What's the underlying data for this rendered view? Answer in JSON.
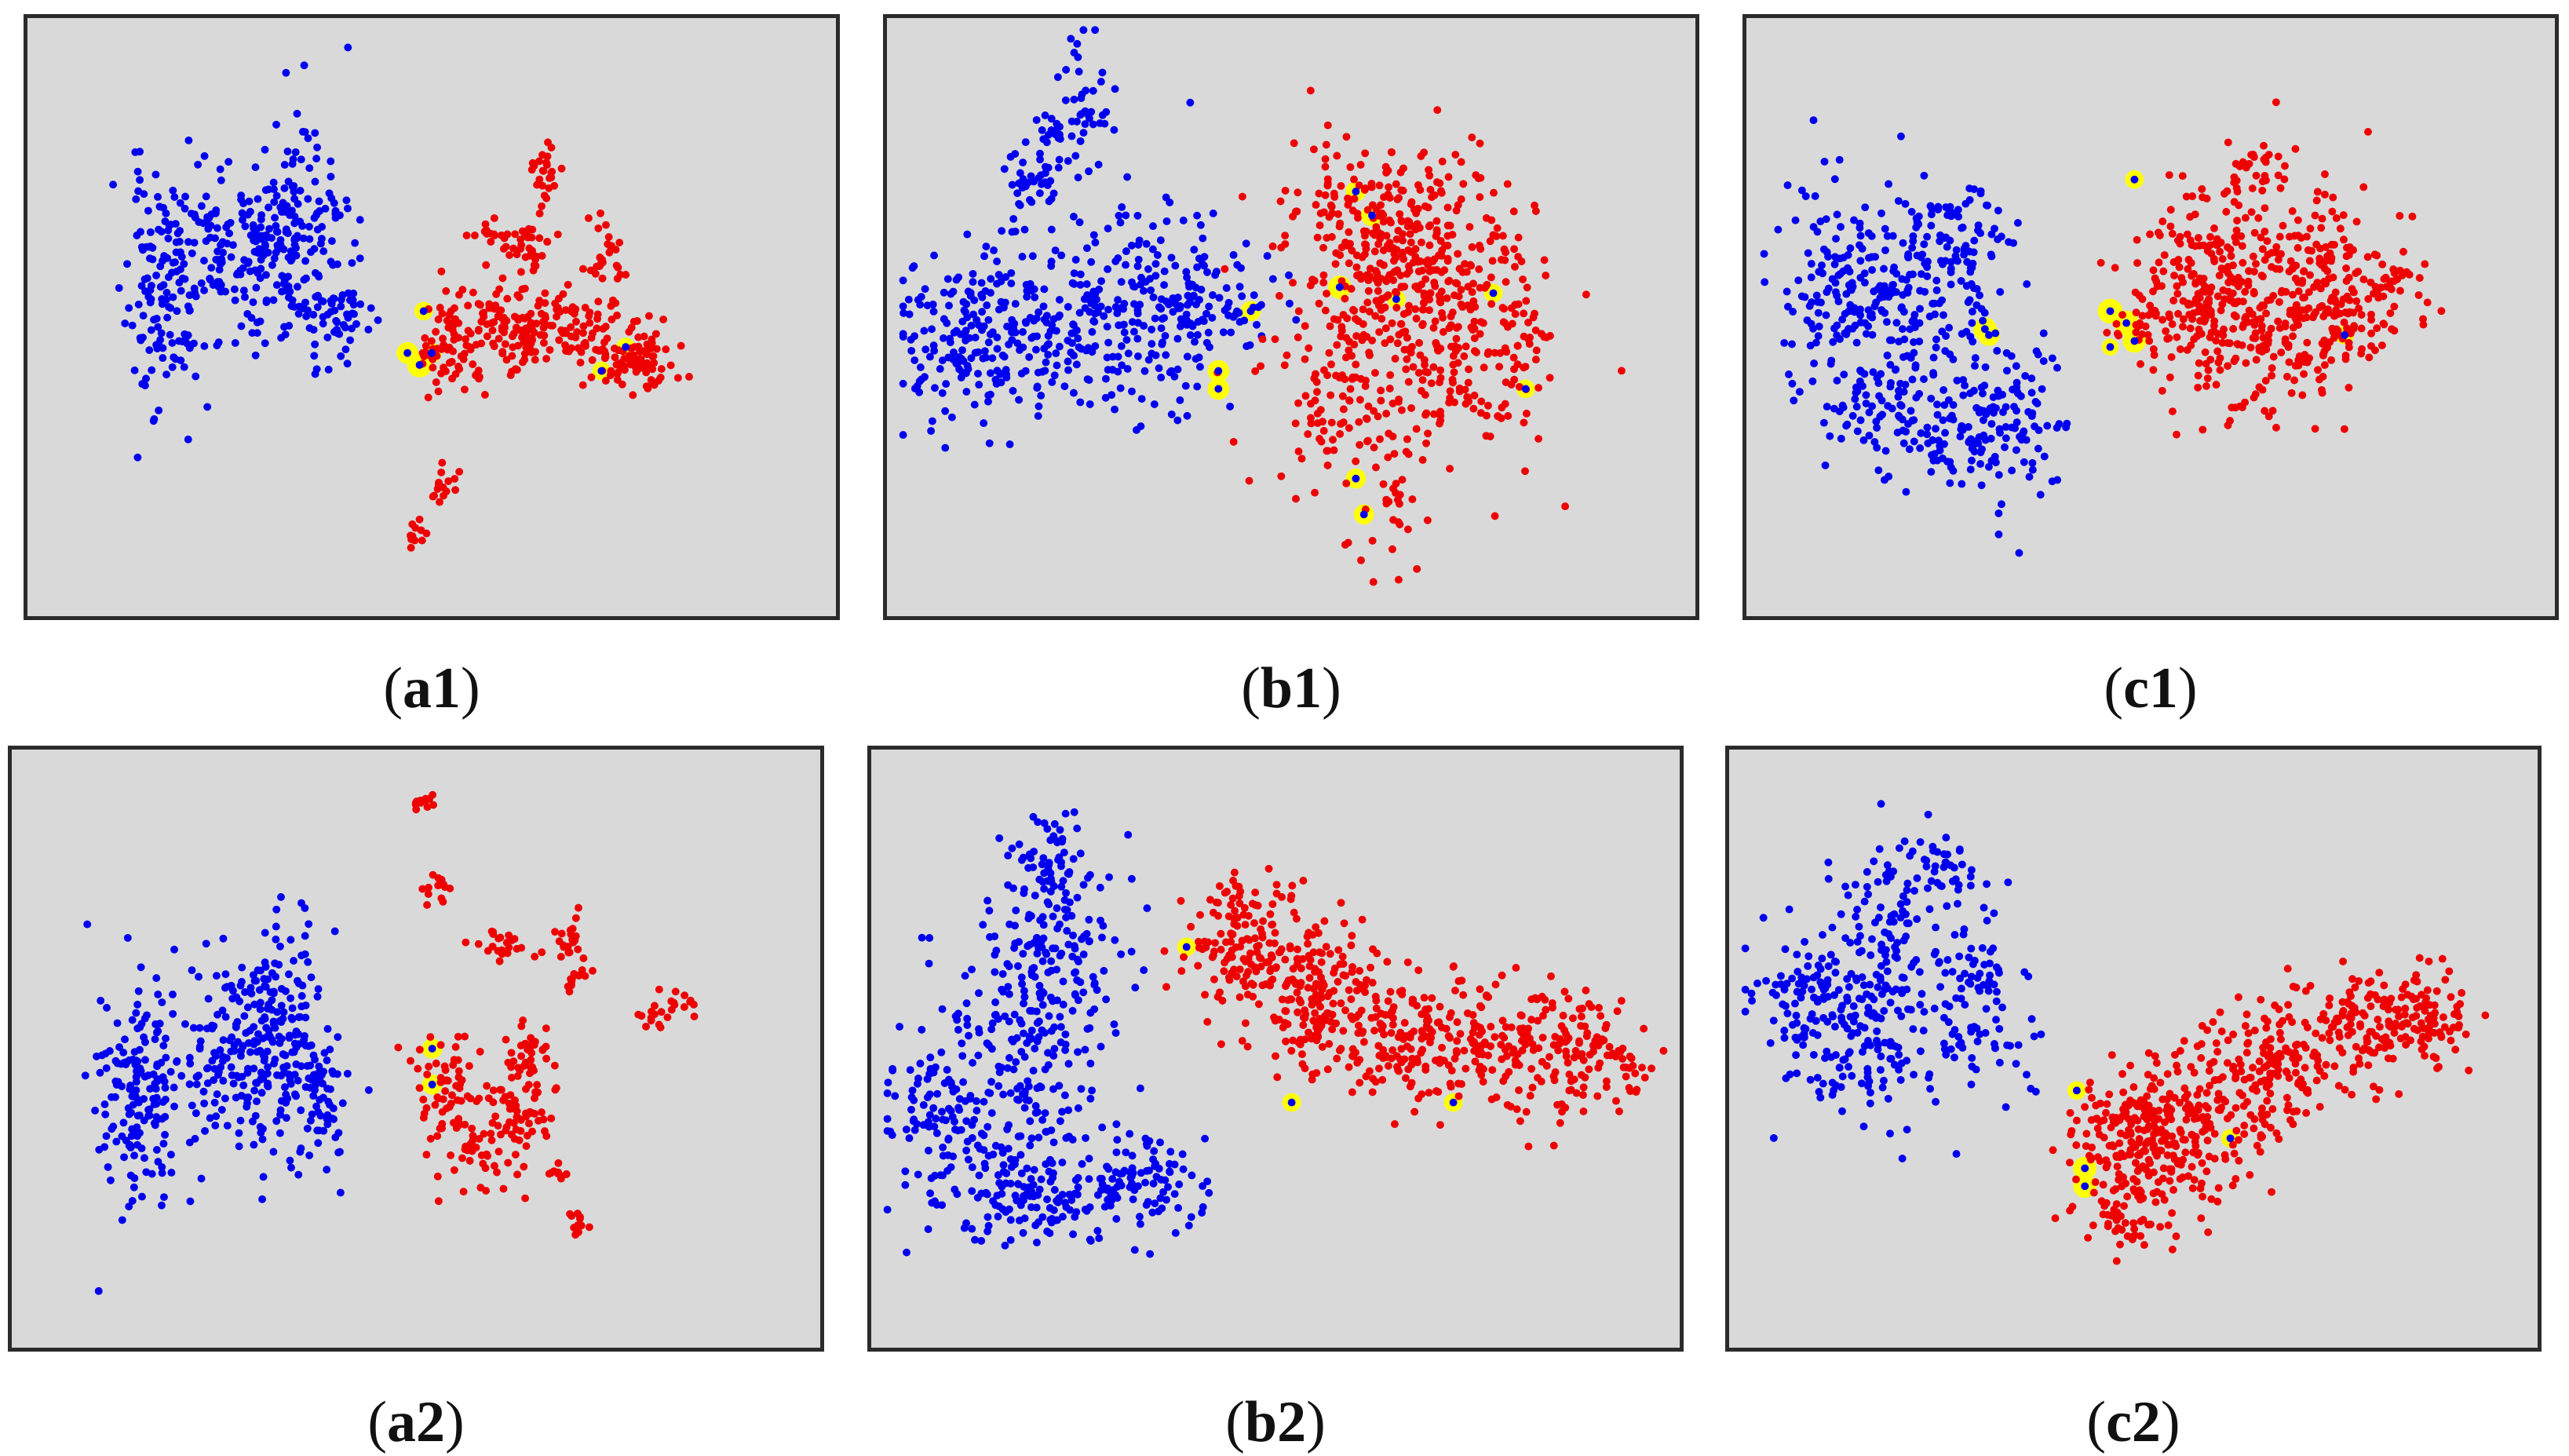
{
  "colors": {
    "class_a": "#0000ee",
    "class_b": "#ee0000",
    "highlight": "#ffff00",
    "panel_bg": "#d9d9d9",
    "panel_border": "#2b2b2b"
  },
  "chart_data": [
    {
      "id": "a1",
      "type": "scatter",
      "caption_open": "(",
      "caption_letter": "a1",
      "caption_close": ")",
      "xlim": [
        0,
        100
      ],
      "ylim": [
        0,
        100
      ],
      "seed": 11,
      "series": [
        {
          "class": "a",
          "clusters": [
            {
              "x": 17,
              "y": 55,
              "sx": 2.4,
              "sy": 10,
              "n": 150
            },
            {
              "x": 26,
              "y": 60,
              "sx": 3.4,
              "sy": 7,
              "n": 110
            },
            {
              "x": 33,
              "y": 64,
              "sx": 3.2,
              "sy": 9,
              "n": 160
            },
            {
              "x": 39,
              "y": 51,
              "sx": 2.2,
              "sy": 4,
              "n": 50
            }
          ]
        },
        {
          "class": "b",
          "clusters": [
            {
              "x": 52,
              "y": 45,
              "sx": 2,
              "sy": 4,
              "n": 50
            },
            {
              "x": 59,
              "y": 49,
              "sx": 5,
              "sy": 4,
              "n": 110
            },
            {
              "x": 66,
              "y": 48,
              "sx": 5,
              "sy": 3,
              "n": 90
            },
            {
              "x": 75,
              "y": 43,
              "sx": 2.6,
              "sy": 2.5,
              "n": 80
            },
            {
              "x": 62,
              "y": 62,
              "sx": 1.6,
              "sy": 2.2,
              "n": 35
            },
            {
              "x": 64,
              "y": 74,
              "sx": 1.2,
              "sy": 2.2,
              "n": 25
            },
            {
              "x": 71,
              "y": 63,
              "sx": 1.2,
              "sy": 2,
              "n": 15
            },
            {
              "x": 71,
              "y": 58,
              "sx": 1.5,
              "sy": 1.5,
              "n": 12
            },
            {
              "x": 57,
              "y": 64,
              "sx": 1.2,
              "sy": 1.2,
              "n": 14
            },
            {
              "x": 51,
              "y": 22,
              "sx": 1,
              "sy": 1.5,
              "n": 15
            },
            {
              "x": 48,
              "y": 14,
              "sx": 0.8,
              "sy": 1,
              "n": 12
            }
          ]
        }
      ],
      "highlights": [
        {
          "x": 47,
          "y": 44,
          "r": 1.4
        },
        {
          "x": 48.5,
          "y": 42,
          "r": 1.6
        },
        {
          "x": 50,
          "y": 44,
          "r": 1.3
        },
        {
          "x": 49,
          "y": 51,
          "r": 1.2
        },
        {
          "x": 71,
          "y": 41,
          "r": 1.2
        },
        {
          "x": 74,
          "y": 45,
          "r": 1.2
        }
      ]
    },
    {
      "id": "b1",
      "type": "scatter",
      "caption_open": "(",
      "caption_letter": "b1",
      "caption_close": ")",
      "xlim": [
        0,
        100
      ],
      "ylim": [
        0,
        100
      ],
      "seed": 23,
      "series": [
        {
          "class": "a",
          "clusters": [
            {
              "x": 10,
              "y": 46,
              "sx": 5,
              "sy": 7,
              "n": 160
            },
            {
              "x": 22,
              "y": 48,
              "sx": 6,
              "sy": 8,
              "n": 180
            },
            {
              "x": 33,
              "y": 56,
              "sx": 4,
              "sy": 9,
              "n": 90
            },
            {
              "x": 40,
              "y": 52,
              "sx": 4,
              "sy": 3,
              "n": 60
            },
            {
              "x": 19,
              "y": 74,
              "sx": 2.2,
              "sy": 4,
              "n": 45
            },
            {
              "x": 24,
              "y": 85,
              "sx": 2,
              "sy": 6,
              "n": 50
            },
            {
              "x": 36,
              "y": 42,
              "sx": 3,
              "sy": 3,
              "n": 20
            }
          ]
        },
        {
          "class": "b",
          "clusters": [
            {
              "x": 60,
              "y": 64,
              "sx": 6,
              "sy": 8,
              "n": 220
            },
            {
              "x": 67,
              "y": 56,
              "sx": 7,
              "sy": 9,
              "n": 190
            },
            {
              "x": 58,
              "y": 38,
              "sx": 6,
              "sy": 8,
              "n": 140
            },
            {
              "x": 72,
              "y": 38,
              "sx": 5,
              "sy": 7,
              "n": 80
            },
            {
              "x": 77,
              "y": 52,
              "sx": 3,
              "sy": 8,
              "n": 50
            },
            {
              "x": 62,
              "y": 16,
              "sx": 2.5,
              "sy": 5,
              "n": 25
            }
          ]
        }
      ],
      "highlights": [
        {
          "x": 45,
          "y": 51,
          "r": 1.3
        },
        {
          "x": 41,
          "y": 41,
          "r": 1.4
        },
        {
          "x": 41,
          "y": 38,
          "r": 1.4
        },
        {
          "x": 56,
          "y": 55,
          "r": 1.5
        },
        {
          "x": 58,
          "y": 71,
          "r": 1.3
        },
        {
          "x": 60,
          "y": 67,
          "r": 1.4
        },
        {
          "x": 63,
          "y": 53,
          "r": 1.2
        },
        {
          "x": 75,
          "y": 54,
          "r": 1.2
        },
        {
          "x": 79,
          "y": 38,
          "r": 1.2
        },
        {
          "x": 58,
          "y": 23,
          "r": 1.3
        },
        {
          "x": 59,
          "y": 17,
          "r": 1.3
        }
      ]
    },
    {
      "id": "c1",
      "type": "scatter",
      "caption_open": "(",
      "caption_letter": "c1",
      "caption_close": ")",
      "xlim": [
        0,
        100
      ],
      "ylim": [
        0,
        100
      ],
      "seed": 37,
      "series": [
        {
          "class": "a",
          "clusters": [
            {
              "x": 13,
              "y": 55,
              "sx": 4,
              "sy": 9,
              "n": 170
            },
            {
              "x": 18,
              "y": 35,
              "sx": 5,
              "sy": 5,
              "n": 80
            },
            {
              "x": 24,
              "y": 52,
              "sx": 4.5,
              "sy": 8,
              "n": 110
            },
            {
              "x": 27,
              "y": 30,
              "sx": 5,
              "sy": 4,
              "n": 80
            },
            {
              "x": 33,
              "y": 34,
              "sx": 3,
              "sy": 8,
              "n": 70
            },
            {
              "x": 24,
              "y": 64,
              "sx": 3,
              "sy": 4,
              "n": 40
            },
            {
              "x": 29,
              "y": 66,
              "sx": 2,
              "sy": 2.5,
              "n": 20
            }
          ]
        },
        {
          "class": "b",
          "clusters": [
            {
              "x": 55,
              "y": 56,
              "sx": 4,
              "sy": 8,
              "n": 160
            },
            {
              "x": 64,
              "y": 52,
              "sx": 6,
              "sy": 10,
              "n": 240
            },
            {
              "x": 72,
              "y": 53,
              "sx": 4,
              "sy": 9,
              "n": 120
            },
            {
              "x": 80,
              "y": 55,
              "sx": 2.5,
              "sy": 4,
              "n": 40
            },
            {
              "x": 49,
              "y": 49,
              "sx": 1.8,
              "sy": 3,
              "n": 22
            },
            {
              "x": 63,
              "y": 75,
              "sx": 3,
              "sy": 3,
              "n": 25
            }
          ]
        }
      ],
      "highlights": [
        {
          "x": 29.5,
          "y": 48,
          "r": 1.5
        },
        {
          "x": 30,
          "y": 47,
          "r": 1.4
        },
        {
          "x": 45,
          "y": 51,
          "r": 1.6
        },
        {
          "x": 47,
          "y": 49,
          "r": 1.6
        },
        {
          "x": 48,
          "y": 46,
          "r": 1.5
        },
        {
          "x": 48,
          "y": 73,
          "r": 1.2
        },
        {
          "x": 74,
          "y": 47,
          "r": 1.2
        },
        {
          "x": 45,
          "y": 45,
          "r": 1.1
        }
      ]
    },
    {
      "id": "a2",
      "type": "scatter",
      "caption_open": "(",
      "caption_letter": "a2",
      "caption_close": ")",
      "xlim": [
        0,
        100
      ],
      "ylim": [
        0,
        100
      ],
      "seed": 41,
      "series": [
        {
          "class": "a",
          "clusters": [
            {
              "x": 16,
              "y": 43,
              "sx": 2.6,
              "sy": 10,
              "n": 170
            },
            {
              "x": 27,
              "y": 50,
              "sx": 3.2,
              "sy": 9,
              "n": 130
            },
            {
              "x": 34,
              "y": 52,
              "sx": 3,
              "sy": 10,
              "n": 170
            },
            {
              "x": 39,
              "y": 40,
              "sx": 2,
              "sy": 5,
              "n": 40
            }
          ]
        },
        {
          "class": "b",
          "clusters": [
            {
              "x": 54,
              "y": 44,
              "sx": 2,
              "sy": 4,
              "n": 55
            },
            {
              "x": 58,
              "y": 33,
              "sx": 2.5,
              "sy": 4,
              "n": 50
            },
            {
              "x": 63,
              "y": 40,
              "sx": 2,
              "sy": 5,
              "n": 60
            },
            {
              "x": 64,
              "y": 49,
              "sx": 1.3,
              "sy": 2,
              "n": 25
            },
            {
              "x": 61,
              "y": 67,
              "sx": 1.8,
              "sy": 1.6,
              "n": 22
            },
            {
              "x": 69,
              "y": 68,
              "sx": 1.2,
              "sy": 2.2,
              "n": 22
            },
            {
              "x": 70,
              "y": 62,
              "sx": 1,
              "sy": 1.2,
              "n": 12
            },
            {
              "x": 53,
              "y": 77,
              "sx": 1,
              "sy": 1.3,
              "n": 15
            },
            {
              "x": 51,
              "y": 91,
              "sx": 0.8,
              "sy": 1.2,
              "n": 12
            },
            {
              "x": 79,
              "y": 55,
              "sx": 1,
              "sy": 1.2,
              "n": 12
            },
            {
              "x": 83,
              "y": 58,
              "sx": 1,
              "sy": 1.2,
              "n": 12
            },
            {
              "x": 68,
              "y": 30,
              "sx": 0.8,
              "sy": 1.2,
              "n": 10
            },
            {
              "x": 70,
              "y": 21,
              "sx": 0.9,
              "sy": 1.2,
              "n": 12
            }
          ]
        }
      ],
      "highlights": [
        {
          "x": 52,
          "y": 50,
          "r": 1.3
        },
        {
          "x": 52,
          "y": 44,
          "r": 1.3
        }
      ]
    },
    {
      "id": "b2",
      "type": "scatter",
      "caption_open": "(",
      "caption_letter": "b2",
      "caption_close": ")",
      "xlim": [
        0,
        100
      ],
      "ylim": [
        0,
        100
      ],
      "seed": 53,
      "series": [
        {
          "class": "a",
          "clusters": [
            {
              "x": 8,
              "y": 36,
              "sx": 4,
              "sy": 7,
              "n": 90
            },
            {
              "x": 17,
              "y": 48,
              "sx": 5,
              "sy": 13,
              "n": 200
            },
            {
              "x": 23,
              "y": 65,
              "sx": 4,
              "sy": 10,
              "n": 140
            },
            {
              "x": 21,
              "y": 26,
              "sx": 4,
              "sy": 5,
              "n": 90
            },
            {
              "x": 33,
              "y": 28,
              "sx": 5,
              "sy": 4,
              "n": 110
            },
            {
              "x": 22,
              "y": 82,
              "sx": 2,
              "sy": 4,
              "n": 40
            }
          ]
        },
        {
          "class": "b",
          "clusters": [
            {
              "x": 47,
              "y": 66,
              "sx": 4,
              "sy": 5,
              "n": 110
            },
            {
              "x": 55,
              "y": 58,
              "sx": 5,
              "sy": 6,
              "n": 170
            },
            {
              "x": 67,
              "y": 52,
              "sx": 5,
              "sy": 6,
              "n": 160
            },
            {
              "x": 79,
              "y": 50,
              "sx": 4,
              "sy": 5,
              "n": 100
            },
            {
              "x": 89,
              "y": 49,
              "sx": 4,
              "sy": 5,
              "n": 110
            },
            {
              "x": 46,
              "y": 74,
              "sx": 3,
              "sy": 3,
              "n": 30
            }
          ]
        }
      ],
      "highlights": [
        {
          "x": 39,
          "y": 67,
          "r": 1.2
        },
        {
          "x": 52,
          "y": 41,
          "r": 1.2
        },
        {
          "x": 72,
          "y": 41,
          "r": 1.2
        }
      ]
    },
    {
      "id": "c2",
      "type": "scatter",
      "caption_open": "(",
      "caption_letter": "c2",
      "caption_close": ")",
      "xlim": [
        0,
        100
      ],
      "ylim": [
        0,
        100
      ],
      "seed": 67,
      "series": [
        {
          "class": "a",
          "clusters": [
            {
              "x": 10,
              "y": 58,
              "sx": 4,
              "sy": 6,
              "n": 110
            },
            {
              "x": 18,
              "y": 54,
              "sx": 5,
              "sy": 8,
              "n": 150
            },
            {
              "x": 20,
              "y": 75,
              "sx": 3,
              "sy": 5,
              "n": 60
            },
            {
              "x": 26,
              "y": 80,
              "sx": 2.5,
              "sy": 3,
              "n": 35
            },
            {
              "x": 31,
              "y": 58,
              "sx": 3,
              "sy": 7,
              "n": 90
            }
          ]
        },
        {
          "class": "b",
          "clusters": [
            {
              "x": 49,
              "y": 33,
              "sx": 4,
              "sy": 6,
              "n": 160
            },
            {
              "x": 57,
              "y": 38,
              "sx": 5,
              "sy": 6,
              "n": 180
            },
            {
              "x": 68,
              "y": 47,
              "sx": 5,
              "sy": 5,
              "n": 140
            },
            {
              "x": 79,
              "y": 54,
              "sx": 5,
              "sy": 5,
              "n": 130
            },
            {
              "x": 87,
              "y": 56,
              "sx": 3,
              "sy": 4,
              "n": 70
            },
            {
              "x": 50,
              "y": 21,
              "sx": 2.5,
              "sy": 3,
              "n": 30
            }
          ]
        }
      ],
      "highlights": [
        {
          "x": 43,
          "y": 43,
          "r": 1.2
        },
        {
          "x": 44,
          "y": 30,
          "r": 1.5
        },
        {
          "x": 44,
          "y": 27,
          "r": 1.5
        },
        {
          "x": 62,
          "y": 35,
          "r": 1.2
        }
      ]
    }
  ]
}
